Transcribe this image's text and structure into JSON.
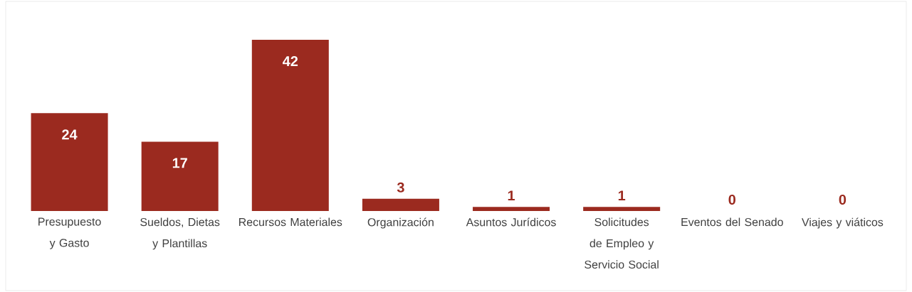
{
  "chart_data": {
    "type": "bar",
    "categories": [
      "Presupuesto y Gasto",
      "Sueldos, Dietas y Plantillas",
      "Recursos Materiales",
      "Organización",
      "Asuntos Jurídicos",
      "Solicitudes de Empleo y Servicio Social",
      "Eventos del Senado",
      "Viajes y viáticos"
    ],
    "values": [
      24,
      17,
      42,
      3,
      1,
      1,
      0,
      0
    ],
    "color": "#9b2a1f",
    "data_labels": true
  }
}
